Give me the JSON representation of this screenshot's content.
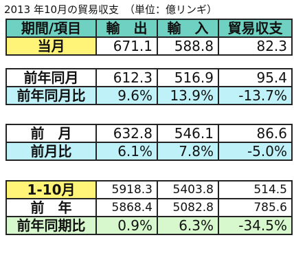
{
  "title": {
    "main": "2013 年10月の貿易収支",
    "unit": "（単位：億リンギ）"
  },
  "header": [
    "期間/項目",
    "輸　出",
    "輸　入",
    "貿易収支"
  ],
  "current": {
    "label": "当月",
    "export": "671.1",
    "import": "588.8",
    "balance": "82.3"
  },
  "yoy": [
    {
      "label": "前年同月",
      "export": "612.3",
      "import": "516.9",
      "balance": "95.4"
    },
    {
      "label": "前年同月比",
      "export": "9.6%",
      "import": "13.9%",
      "balance": "-13.7%"
    }
  ],
  "mom": [
    {
      "label": "前　月",
      "export": "632.8",
      "import": "546.1",
      "balance": "86.6"
    },
    {
      "label": "前月比",
      "export": "6.1%",
      "import": "7.8%",
      "balance": "-5.0%"
    }
  ],
  "ytd": [
    {
      "label": "1-10月",
      "export": "5918.3",
      "import": "5403.8",
      "balance": "514.5"
    },
    {
      "label": "前　年",
      "export": "5868.4",
      "import": "5082.8",
      "balance": "785.6"
    },
    {
      "label": "前年同期比",
      "export": "0.9%",
      "import": "6.3%",
      "balance": "-34.5%"
    }
  ],
  "colors": {
    "header": "#6fd1c1",
    "highlight": "#fff478",
    "ratio": "#bff1f8",
    "ytd_ratio": "#d6f8cc"
  }
}
